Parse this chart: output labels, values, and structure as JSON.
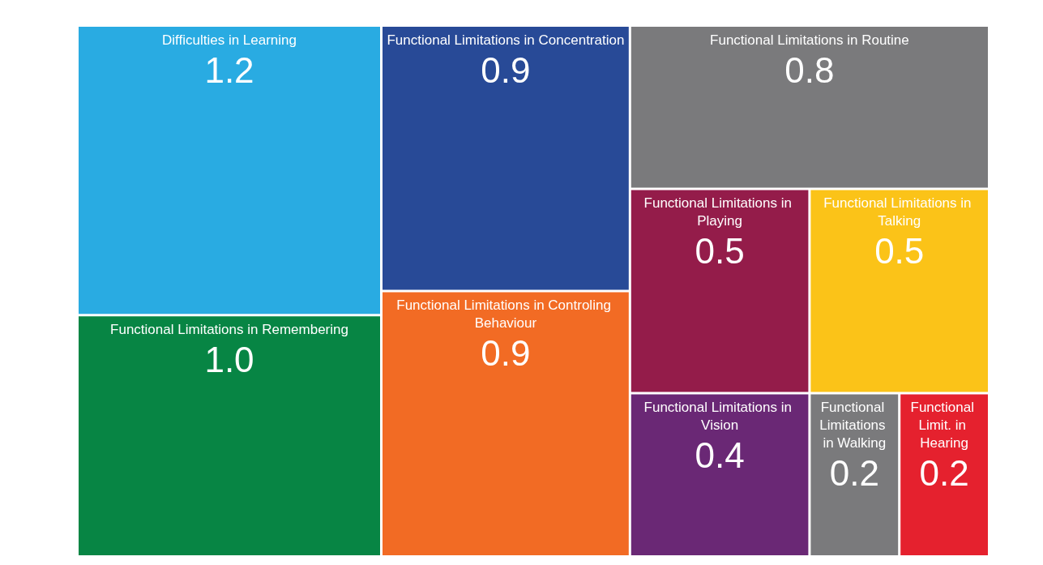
{
  "chart_data": {
    "type": "other",
    "categories": [
      "Difficulties in Learning",
      "Functional Limitations in Remembering",
      "Functional Limitations in Concentration",
      "Functional Limitations in Controling Behaviour",
      "Functional Limitations in Routine",
      "Functional Limitations in Playing",
      "Functional Limitations in Talking",
      "Functional Limitations in Vision",
      "Functional Limitations in Walking",
      "Functional Limit. in Hearing"
    ],
    "values": [
      1.2,
      1.0,
      0.9,
      0.9,
      0.8,
      0.5,
      0.5,
      0.4,
      0.2,
      0.2
    ],
    "value_labels": [
      "1.2",
      "1.0",
      "0.9",
      "0.9",
      "0.8",
      "0.5",
      "0.5",
      "0.4",
      "0.2",
      "0.2"
    ],
    "colors": [
      "#29abe2",
      "#078544",
      "#284a97",
      "#f26b24",
      "#7a7a7c",
      "#941c4a",
      "#fbc318",
      "#6a2875",
      "#7a7a7c",
      "#e5212e"
    ]
  }
}
